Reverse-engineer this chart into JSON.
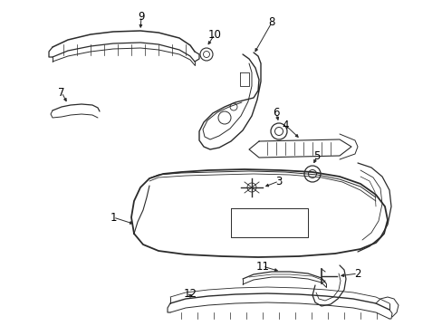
{
  "bg_color": "#ffffff",
  "line_color": "#2a2a2a",
  "figsize": [
    4.89,
    3.6
  ],
  "dpi": 100
}
